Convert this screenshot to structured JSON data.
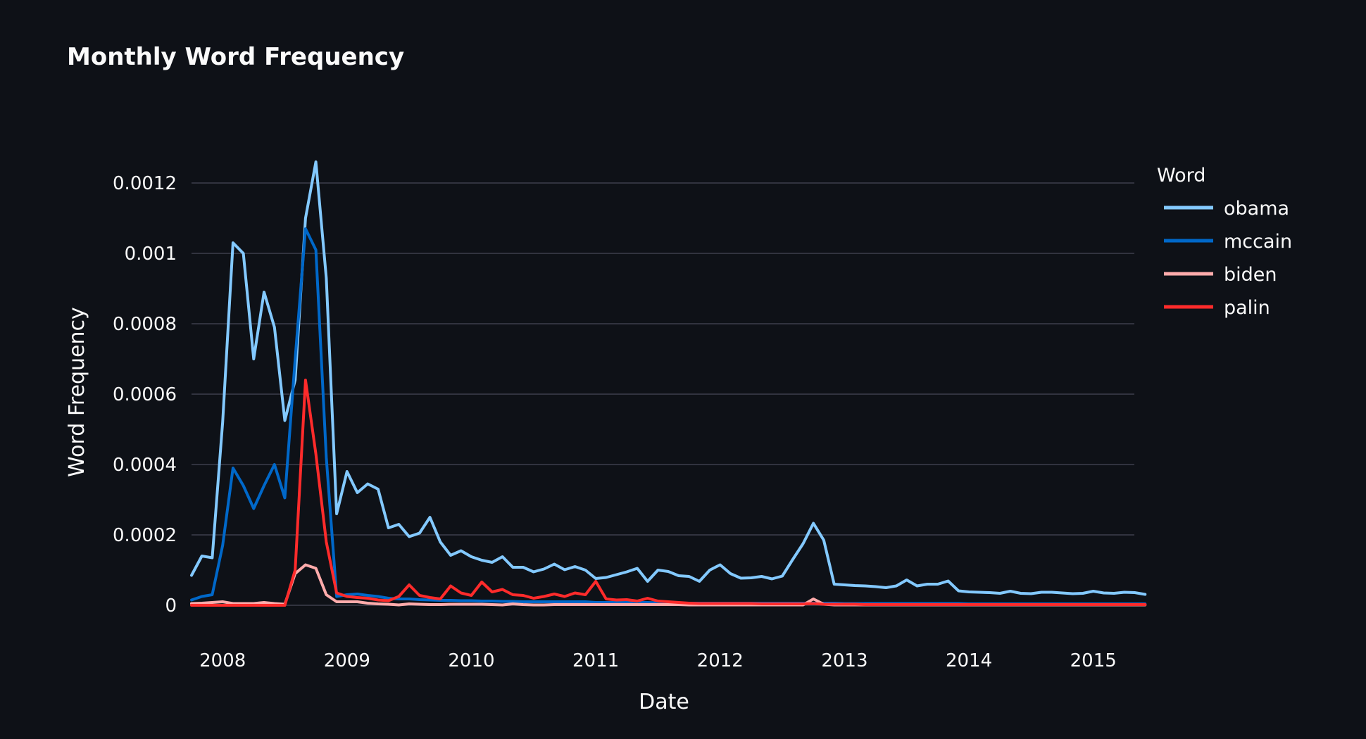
{
  "chart_data": {
    "type": "line",
    "title": "Monthly Word Frequency",
    "xlabel": "Date",
    "ylabel": "Word Frequency",
    "legend_title": "Word",
    "legend_position": "right",
    "grid": true,
    "xlim": [
      2007.75,
      2015.33
    ],
    "ylim": [
      -8e-05,
      0.0013
    ],
    "x_ticks": [
      {
        "label": "2008",
        "value": 2008
      },
      {
        "label": "2009",
        "value": 2009
      },
      {
        "label": "2010",
        "value": 2010
      },
      {
        "label": "2011",
        "value": 2011
      },
      {
        "label": "2012",
        "value": 2012
      },
      {
        "label": "2013",
        "value": 2013
      },
      {
        "label": "2014",
        "value": 2014
      },
      {
        "label": "2015",
        "value": 2015
      }
    ],
    "y_ticks": [
      {
        "label": "0",
        "value": 0
      },
      {
        "label": "0.0002",
        "value": 0.0002
      },
      {
        "label": "0.0004",
        "value": 0.0004
      },
      {
        "label": "0.0006",
        "value": 0.0006
      },
      {
        "label": "0.0008",
        "value": 0.0008
      },
      {
        "label": "0.001",
        "value": 0.001
      },
      {
        "label": "0.0012",
        "value": 0.0012
      }
    ],
    "x_start": 2007.75,
    "x_step": 0.08333,
    "series": [
      {
        "name": "obama",
        "color": "#83c9ff",
        "values": [
          8.5e-05,
          0.00014,
          0.000135,
          0.00052,
          0.00103,
          0.001,
          0.0007,
          0.00089,
          0.00079,
          0.000525,
          0.00064,
          0.0011,
          0.00126,
          0.00093,
          0.00026,
          0.00038,
          0.00032,
          0.000345,
          0.00033,
          0.00022,
          0.00023,
          0.000195,
          0.000205,
          0.00025,
          0.00018,
          0.000142,
          0.000155,
          0.000138,
          0.000128,
          0.000122,
          0.000138,
          0.000108,
          0.000108,
          9.5e-05,
          0.000103,
          0.000117,
          0.000101,
          0.00011,
          0.0001,
          7.6e-05,
          7.9e-05,
          8.7e-05,
          9.5e-05,
          0.000105,
          6.8e-05,
          0.0001,
          9.6e-05,
          8.4e-05,
          8.2e-05,
          6.8e-05,
          0.0001,
          0.000115,
          9e-05,
          7.7e-05,
          7.8e-05,
          8.2e-05,
          7.5e-05,
          8.3e-05,
          0.00013,
          0.000175,
          0.000233,
          0.000185,
          6e-05,
          5.8e-05,
          5.6e-05,
          5.5e-05,
          5.3e-05,
          5e-05,
          5.5e-05,
          7.2e-05,
          5.5e-05,
          6e-05,
          6e-05,
          6.9e-05,
          4.1e-05,
          3.8e-05,
          3.7e-05,
          3.6e-05,
          3.4e-05,
          4e-05,
          3.4e-05,
          3.3e-05,
          3.7e-05,
          3.7e-05,
          3.5e-05,
          3.3e-05,
          3.4e-05,
          4e-05,
          3.5e-05,
          3.4e-05,
          3.7e-05,
          3.6e-05,
          3.1e-05
        ]
      },
      {
        "name": "mccain",
        "color": "#0068c9",
        "values": [
          1.5e-05,
          2.5e-05,
          3e-05,
          0.00017,
          0.00039,
          0.00034,
          0.000275,
          0.00034,
          0.0004,
          0.000305,
          0.0007,
          0.00107,
          0.00101,
          0.00042,
          2.5e-05,
          3e-05,
          3.2e-05,
          2.8e-05,
          2.5e-05,
          2e-05,
          1.8e-05,
          1.8e-05,
          1.6e-05,
          1.5e-05,
          1.4e-05,
          1.4e-05,
          1.3e-05,
          1.3e-05,
          1.2e-05,
          1.2e-05,
          1.1e-05,
          1.1e-05,
          1e-05,
          1e-05,
          1e-05,
          1e-05,
          1e-05,
          1e-05,
          1e-05,
          8e-06,
          8e-06,
          8e-06,
          8e-06,
          8e-06,
          8e-06,
          7e-06,
          7e-06,
          6e-06,
          6e-06,
          6e-06,
          6e-06,
          6e-06,
          6e-06,
          6e-06,
          6e-06,
          6e-06,
          6e-06,
          6e-06,
          6e-06,
          6e-06,
          6e-06,
          6e-06,
          6e-06,
          5e-06,
          5e-06,
          5e-06,
          5e-06,
          5e-06,
          5e-06,
          5e-06,
          5e-06,
          5e-06,
          5e-06,
          5e-06,
          5e-06,
          4e-06,
          4e-06,
          4e-06,
          4e-06,
          4e-06,
          4e-06,
          4e-06,
          4e-06,
          4e-06,
          4e-06,
          4e-06,
          4e-06,
          4e-06,
          4e-06,
          4e-06,
          4e-06,
          4e-06,
          4e-06
        ]
      },
      {
        "name": "biden",
        "color": "#ffabab",
        "values": [
          5e-06,
          6e-06,
          8e-06,
          1e-05,
          5e-06,
          5e-06,
          5e-06,
          8e-06,
          5e-06,
          3e-06,
          9e-05,
          0.000115,
          0.000105,
          3e-05,
          1e-05,
          1e-05,
          1e-05,
          6e-06,
          4e-06,
          3e-06,
          1e-06,
          4e-06,
          3e-06,
          2e-06,
          2e-06,
          3e-06,
          3e-06,
          3e-06,
          3e-06,
          2e-06,
          1e-06,
          4e-06,
          2e-06,
          1e-06,
          1e-06,
          2e-06,
          2e-06,
          2e-06,
          2e-06,
          2e-06,
          2e-06,
          2e-06,
          2e-06,
          2e-06,
          2e-06,
          2e-06,
          2e-06,
          2e-06,
          1e-06,
          1e-06,
          1e-06,
          1e-06,
          1e-06,
          1e-06,
          1e-06,
          1e-06,
          1e-06,
          1e-06,
          1e-06,
          1e-06,
          1.8e-05,
          3e-06,
          1e-06,
          1e-06,
          1e-06,
          1e-06,
          1e-06,
          1e-06,
          1e-06,
          1e-06,
          1e-06,
          1e-06,
          1e-06,
          1e-06,
          1e-06,
          1e-06,
          1e-06,
          1e-06,
          1e-06,
          1e-06,
          1e-06,
          1e-06,
          1e-06,
          1e-06,
          1e-06,
          1e-06,
          1e-06,
          1e-06,
          1e-06,
          1e-06,
          1e-06,
          1e-06,
          1e-06
        ]
      },
      {
        "name": "palin",
        "color": "#ff2b2b",
        "values": [
          0,
          0,
          0,
          0,
          0,
          0,
          0,
          0,
          0,
          0,
          0.0001,
          0.00064,
          0.00043,
          0.00018,
          3.5e-05,
          2.5e-05,
          2.2e-05,
          2e-05,
          1.5e-05,
          1.3e-05,
          2.5e-05,
          5.8e-05,
          2.8e-05,
          2.2e-05,
          1.8e-05,
          5.5e-05,
          3.5e-05,
          2.8e-05,
          6.6e-05,
          3.8e-05,
          4.5e-05,
          3e-05,
          2.8e-05,
          2e-05,
          2.5e-05,
          3.2e-05,
          2.5e-05,
          3.5e-05,
          3e-05,
          6.8e-05,
          1.8e-05,
          1.5e-05,
          1.6e-05,
          1.2e-05,
          2e-05,
          1.2e-05,
          1e-05,
          8e-06,
          6e-06,
          5e-06,
          5e-06,
          5e-06,
          5e-06,
          5e-06,
          5e-06,
          4e-06,
          4e-06,
          4e-06,
          4e-06,
          4e-06,
          5e-06,
          3e-06,
          3e-06,
          3e-06,
          3e-06,
          2e-06,
          2e-06,
          2e-06,
          2e-06,
          2e-06,
          2e-06,
          2e-06,
          2e-06,
          2e-06,
          2e-06,
          2e-06,
          2e-06,
          2e-06,
          2e-06,
          2e-06,
          2e-06,
          2e-06,
          2e-06,
          2e-06,
          2e-06,
          2e-06,
          2e-06,
          2e-06,
          2e-06,
          2e-06,
          2e-06,
          2e-06,
          2e-06
        ]
      }
    ]
  }
}
